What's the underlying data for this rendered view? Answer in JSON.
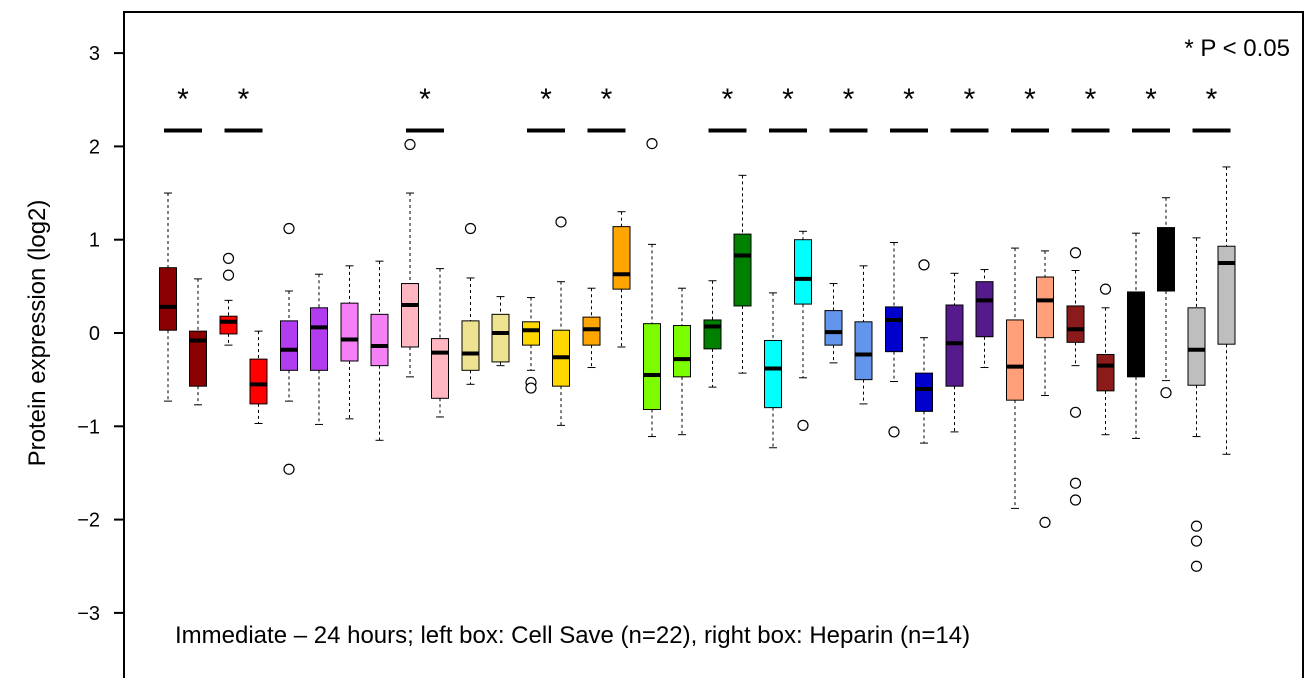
{
  "chart_data": {
    "type": "boxplot",
    "ylabel": "Protein expression (log2)",
    "ylim": [
      -3.5,
      3.4
    ],
    "yticks": [
      -3,
      -2,
      -1,
      0,
      1,
      2,
      3
    ],
    "ytick_labels": [
      "−3",
      "−2",
      "−1",
      "0",
      "1",
      "2",
      "3"
    ],
    "annotation": "Immediate – 24 hours; left box: Cell Save (n=22), right box: Heparin (n=14)",
    "significance_note": "* P < 0.05",
    "significance_marker": "*",
    "significance_bar_y": 2.17,
    "significance_star_y": 2.55,
    "groups": [
      {
        "color": "#8B0000",
        "significant": true,
        "boxes": [
          {
            "min": -0.73,
            "q1": 0.03,
            "median": 0.28,
            "q3": 0.7,
            "max": 1.5,
            "outliers": []
          },
          {
            "min": -0.77,
            "q1": -0.57,
            "median": -0.08,
            "q3": 0.02,
            "max": 0.58,
            "outliers": []
          }
        ]
      },
      {
        "color": "#FF0000",
        "significant": true,
        "boxes": [
          {
            "min": -0.13,
            "q1": -0.01,
            "median": 0.12,
            "q3": 0.18,
            "max": 0.35,
            "outliers": [
              0.62,
              0.8
            ]
          },
          {
            "min": -0.97,
            "q1": -0.76,
            "median": -0.55,
            "q3": -0.28,
            "max": 0.02,
            "outliers": []
          }
        ]
      },
      {
        "color": "#B23CF0",
        "significant": false,
        "boxes": [
          {
            "min": -0.73,
            "q1": -0.4,
            "median": -0.18,
            "q3": 0.13,
            "max": 0.45,
            "outliers": [
              1.12,
              -1.46
            ]
          },
          {
            "min": -0.98,
            "q1": -0.4,
            "median": 0.06,
            "q3": 0.27,
            "max": 0.63,
            "outliers": []
          }
        ]
      },
      {
        "color": "#F57FF5",
        "significant": false,
        "boxes": [
          {
            "min": -0.92,
            "q1": -0.3,
            "median": -0.07,
            "q3": 0.32,
            "max": 0.72,
            "outliers": []
          },
          {
            "min": -1.15,
            "q1": -0.35,
            "median": -0.14,
            "q3": 0.2,
            "max": 0.77,
            "outliers": []
          }
        ]
      },
      {
        "color": "#FFB6C1",
        "significant": true,
        "boxes": [
          {
            "min": -0.47,
            "q1": -0.15,
            "median": 0.3,
            "q3": 0.53,
            "max": 1.5,
            "outliers": [
              2.02
            ]
          },
          {
            "min": -0.9,
            "q1": -0.7,
            "median": -0.21,
            "q3": -0.06,
            "max": 0.69,
            "outliers": []
          }
        ]
      },
      {
        "color": "#EEE391",
        "significant": false,
        "boxes": [
          {
            "min": -0.55,
            "q1": -0.4,
            "median": -0.22,
            "q3": 0.13,
            "max": 0.59,
            "outliers": [
              1.12
            ]
          },
          {
            "min": -0.35,
            "q1": -0.31,
            "median": 0.0,
            "q3": 0.2,
            "max": 0.39,
            "outliers": []
          }
        ]
      },
      {
        "color": "#FFD700",
        "significant": true,
        "boxes": [
          {
            "min": -0.4,
            "q1": -0.13,
            "median": 0.03,
            "q3": 0.12,
            "max": 0.38,
            "outliers": [
              -0.53,
              -0.59
            ]
          },
          {
            "min": -0.99,
            "q1": -0.57,
            "median": -0.26,
            "q3": 0.03,
            "max": 0.55,
            "outliers": [
              1.19
            ]
          }
        ]
      },
      {
        "color": "#FFA500",
        "significant": true,
        "boxes": [
          {
            "min": -0.37,
            "q1": -0.13,
            "median": 0.04,
            "q3": 0.17,
            "max": 0.48,
            "outliers": []
          },
          {
            "min": -0.15,
            "q1": 0.47,
            "median": 0.63,
            "q3": 1.14,
            "max": 1.3,
            "outliers": []
          }
        ]
      },
      {
        "color": "#7CFC00",
        "significant": false,
        "boxes": [
          {
            "min": -1.11,
            "q1": -0.82,
            "median": -0.45,
            "q3": 0.1,
            "max": 0.95,
            "outliers": [
              2.03
            ]
          },
          {
            "min": -1.09,
            "q1": -0.47,
            "median": -0.28,
            "q3": 0.08,
            "max": 0.48,
            "outliers": []
          }
        ]
      },
      {
        "color": "#008000",
        "significant": true,
        "boxes": [
          {
            "min": -0.58,
            "q1": -0.17,
            "median": 0.07,
            "q3": 0.14,
            "max": 0.56,
            "outliers": []
          },
          {
            "min": -0.43,
            "q1": 0.29,
            "median": 0.83,
            "q3": 1.06,
            "max": 1.69,
            "outliers": []
          }
        ]
      },
      {
        "color": "#00FFFF",
        "significant": true,
        "boxes": [
          {
            "min": -1.23,
            "q1": -0.8,
            "median": -0.38,
            "q3": -0.08,
            "max": 0.43,
            "outliers": []
          },
          {
            "min": -0.48,
            "q1": 0.31,
            "median": 0.58,
            "q3": 1.0,
            "max": 1.09,
            "outliers": [
              -0.99
            ]
          }
        ]
      },
      {
        "color": "#6495ED",
        "significant": true,
        "boxes": [
          {
            "min": -0.32,
            "q1": -0.13,
            "median": 0.01,
            "q3": 0.24,
            "max": 0.53,
            "outliers": []
          },
          {
            "min": -0.76,
            "q1": -0.5,
            "median": -0.23,
            "q3": 0.12,
            "max": 0.72,
            "outliers": []
          }
        ]
      },
      {
        "color": "#0000CD",
        "significant": true,
        "boxes": [
          {
            "min": -0.52,
            "q1": -0.2,
            "median": 0.14,
            "q3": 0.28,
            "max": 0.97,
            "outliers": [
              -1.06
            ]
          },
          {
            "min": -1.18,
            "q1": -0.84,
            "median": -0.6,
            "q3": -0.43,
            "max": -0.05,
            "outliers": [
              0.73
            ]
          }
        ]
      },
      {
        "color": "#551A8B",
        "significant": true,
        "boxes": [
          {
            "min": -1.06,
            "q1": -0.57,
            "median": -0.11,
            "q3": 0.3,
            "max": 0.64,
            "outliers": []
          },
          {
            "min": -0.37,
            "q1": -0.04,
            "median": 0.35,
            "q3": 0.55,
            "max": 0.68,
            "outliers": []
          }
        ]
      },
      {
        "color": "#FFA07A",
        "significant": true,
        "boxes": [
          {
            "min": -1.88,
            "q1": -0.72,
            "median": -0.36,
            "q3": 0.14,
            "max": 0.91,
            "outliers": []
          },
          {
            "min": -0.67,
            "q1": -0.05,
            "median": 0.35,
            "q3": 0.6,
            "max": 0.88,
            "outliers": [
              -2.03
            ]
          }
        ]
      },
      {
        "color": "#8B1A1A",
        "significant": true,
        "boxes": [
          {
            "min": -0.35,
            "q1": -0.1,
            "median": 0.04,
            "q3": 0.29,
            "max": 0.67,
            "outliers": [
              0.86,
              -0.85,
              -1.61,
              -1.79
            ]
          },
          {
            "min": -1.09,
            "q1": -0.62,
            "median": -0.35,
            "q3": -0.23,
            "max": 0.27,
            "outliers": [
              0.47
            ]
          }
        ]
      },
      {
        "color": "#000000",
        "significant": true,
        "boxes": [
          {
            "min": -1.13,
            "q1": -0.47,
            "median": -0.01,
            "q3": 0.44,
            "max": 1.07,
            "outliers": []
          },
          {
            "min": -0.51,
            "q1": 0.45,
            "median": 0.7,
            "q3": 1.13,
            "max": 1.45,
            "outliers": [
              -0.64
            ]
          }
        ]
      },
      {
        "color": "#BEBEBE",
        "significant": true,
        "boxes": [
          {
            "min": -1.11,
            "q1": -0.56,
            "median": -0.18,
            "q3": 0.27,
            "max": 1.02,
            "outliers": [
              -2.07,
              -2.23,
              -2.5
            ]
          },
          {
            "min": -1.3,
            "q1": -0.12,
            "median": 0.75,
            "q3": 0.93,
            "max": 1.78,
            "outliers": []
          }
        ]
      }
    ]
  }
}
